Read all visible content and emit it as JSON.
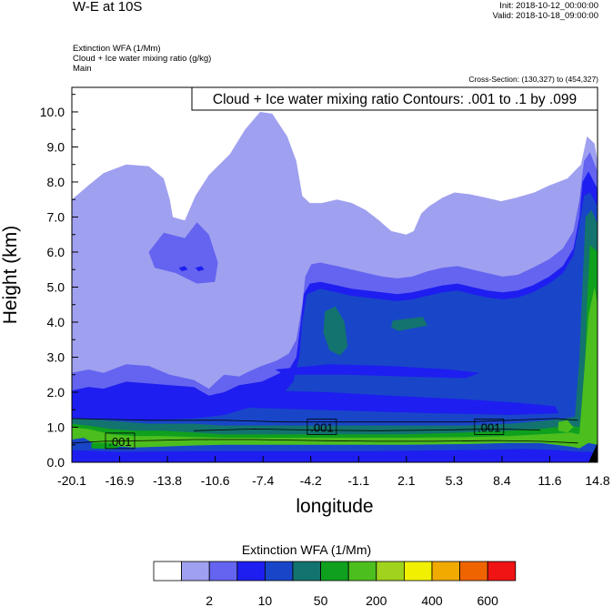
{
  "header": {
    "title": "W-E at 10S",
    "init": "Init: 2018-10-12_00:00:00",
    "valid": "Valid: 2018-10-18_09:00:00",
    "field_lines": [
      "Extinction WFA   (1/Mm)",
      "Cloud + Ice water mixing ratio   (g/kg)",
      "Main"
    ],
    "cross_section": "Cross-Section: (130,327) to (454,327)"
  },
  "chart_data": {
    "type": "heatmap",
    "title": "Cloud + Ice water mixing ratio Contours: .001 to .1 by .099",
    "xlabel": "longitude",
    "ylabel": "Height (km)",
    "xlim": [
      -20.1,
      14.8
    ],
    "ylim": [
      0.0,
      10.7
    ],
    "x_ticks": [
      "-20.1",
      "-16.9",
      "-13.8",
      "-10.6",
      "-7.4",
      "-4.2",
      "-1.1",
      "2.1",
      "5.3",
      "8.4",
      "11.6",
      "14.8"
    ],
    "y_ticks": [
      "0.0",
      "1.0",
      "2.0",
      "3.0",
      "4.0",
      "5.0",
      "6.0",
      "7.0",
      "8.0",
      "9.0",
      "10.0"
    ],
    "contour_labels": [
      {
        "text": ".001",
        "lon": -16.9,
        "height": 0.6
      },
      {
        "text": ".001",
        "lon": -3.5,
        "height": 1.0
      },
      {
        "text": ".001",
        "lon": 7.6,
        "height": 1.0
      }
    ],
    "colorbar": {
      "title": "Extinction WFA  (1/Mm)",
      "colors": [
        "#ffffff",
        "#a0a0f0",
        "#6464f0",
        "#1e1ef0",
        "#1946c8",
        "#13736e",
        "#0fa01e",
        "#4cbe1e",
        "#a0d21e",
        "#f0f000",
        "#f0aa00",
        "#f06400",
        "#f01414"
      ],
      "tick_labels": [
        "2",
        "10",
        "50",
        "200",
        "400",
        "600"
      ]
    }
  }
}
